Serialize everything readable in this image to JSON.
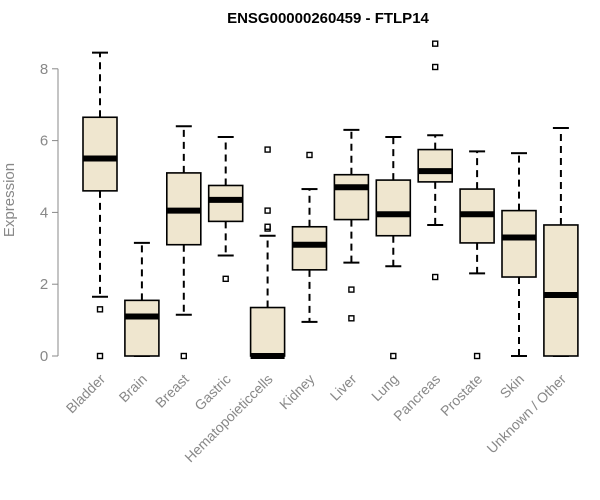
{
  "chart_data": {
    "type": "box",
    "title": "ENSG00000260459 - FTLP14",
    "xlabel": "",
    "ylabel": "Expression",
    "ylim": [
      0,
      8.8
    ],
    "yticks": [
      0,
      2,
      4,
      6,
      8
    ],
    "grid": false,
    "legend": "none",
    "box_fill": "#efe6cf",
    "stroke": "#000000",
    "categories": [
      "Bladder",
      "Brain",
      "Breast",
      "Gastric",
      "Hematopoieticcells",
      "Kidney",
      "Liver",
      "Lung",
      "Pancreas",
      "Prostate",
      "Skin",
      "Unknown / Other"
    ],
    "boxes": [
      {
        "min": 1.65,
        "q1": 4.6,
        "median": 5.5,
        "q3": 6.65,
        "max": 8.45,
        "outliers": [
          1.3,
          0.0
        ]
      },
      {
        "min": 0.0,
        "q1": 0.0,
        "median": 1.1,
        "q3": 1.55,
        "max": 3.15,
        "outliers": []
      },
      {
        "min": 1.15,
        "q1": 3.1,
        "median": 4.05,
        "q3": 5.1,
        "max": 6.4,
        "outliers": [
          0.0
        ]
      },
      {
        "min": 2.8,
        "q1": 3.75,
        "median": 4.35,
        "q3": 4.75,
        "max": 6.1,
        "outliers": [
          2.15
        ]
      },
      {
        "min": 0.0,
        "q1": 0.0,
        "median": 0.0,
        "q3": 1.35,
        "max": 3.35,
        "outliers": [
          3.55,
          3.6,
          4.05,
          5.75
        ]
      },
      {
        "min": 0.95,
        "q1": 2.4,
        "median": 3.1,
        "q3": 3.6,
        "max": 4.65,
        "outliers": [
          5.6
        ]
      },
      {
        "min": 2.6,
        "q1": 3.8,
        "median": 4.7,
        "q3": 5.05,
        "max": 6.3,
        "outliers": [
          1.85,
          1.05
        ]
      },
      {
        "min": 2.5,
        "q1": 3.35,
        "median": 3.95,
        "q3": 4.9,
        "max": 6.1,
        "outliers": [
          0.0
        ]
      },
      {
        "min": 3.65,
        "q1": 4.85,
        "median": 5.15,
        "q3": 5.75,
        "max": 6.15,
        "outliers": [
          8.7,
          8.05,
          2.2
        ]
      },
      {
        "min": 2.3,
        "q1": 3.15,
        "median": 3.95,
        "q3": 4.65,
        "max": 5.7,
        "outliers": [
          0.0
        ]
      },
      {
        "min": 0.0,
        "q1": 2.2,
        "median": 3.3,
        "q3": 4.05,
        "max": 5.65,
        "outliers": []
      },
      {
        "min": 0.0,
        "q1": 0.0,
        "median": 1.7,
        "q3": 3.65,
        "max": 6.35,
        "outliers": []
      }
    ]
  }
}
